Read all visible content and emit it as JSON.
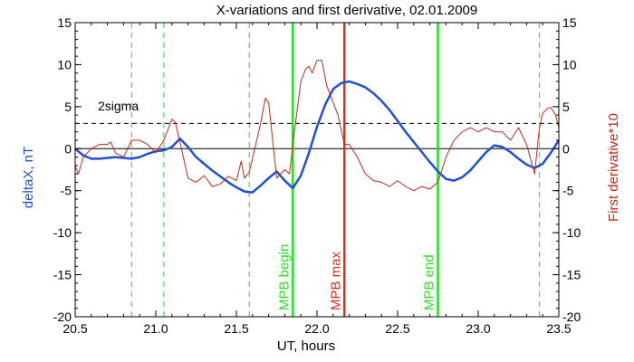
{
  "chart_data": {
    "type": "line",
    "title": "X-variations and first derivative, 02.01.2009",
    "xlabel": "UT, hours",
    "ylabel_left": "deltaX, nT",
    "ylabel_right": "First derivative*10",
    "xlim": [
      20.5,
      23.5
    ],
    "ylim": [
      -20,
      15
    ],
    "x_ticks": [
      "20.5",
      "21.0",
      "21.5",
      "22.0",
      "22.5",
      "23.0",
      "23.5"
    ],
    "y_ticks": [
      "-20",
      "-15",
      "-10",
      "-5",
      "0",
      "5",
      "10",
      "15"
    ],
    "colors": {
      "deltaX": "#1f4fd6",
      "derivative": "#c0291b",
      "markers_green": "#22e022",
      "marker_red": "#d8311a",
      "dashed_green": "#33cc33"
    },
    "reference_lines": {
      "zero": 0,
      "two_sigma": 3.0,
      "two_sigma_label": "2sigma"
    },
    "dashed_vlines": [
      20.85,
      21.05,
      21.58,
      23.38
    ],
    "markers": [
      {
        "x": 21.85,
        "label": "MPB begin",
        "color": "#22e022"
      },
      {
        "x": 22.17,
        "label": "MPB max",
        "color": "#d8311a"
      },
      {
        "x": 22.75,
        "label": "MPB end",
        "color": "#22e022"
      }
    ],
    "series": [
      {
        "key": "deltaX",
        "x": [
          20.5,
          20.55,
          20.6,
          20.65,
          20.7,
          20.75,
          20.8,
          20.85,
          20.9,
          20.95,
          21.0,
          21.05,
          21.1,
          21.15,
          21.2,
          21.25,
          21.3,
          21.35,
          21.4,
          21.45,
          21.5,
          21.55,
          21.6,
          21.65,
          21.7,
          21.75,
          21.8,
          21.85,
          21.9,
          21.95,
          22.0,
          22.05,
          22.1,
          22.15,
          22.2,
          22.25,
          22.3,
          22.35,
          22.4,
          22.45,
          22.5,
          22.55,
          22.6,
          22.65,
          22.7,
          22.75,
          22.8,
          22.85,
          22.9,
          22.95,
          23.0,
          23.05,
          23.1,
          23.15,
          23.2,
          23.25,
          23.3,
          23.35,
          23.4,
          23.45,
          23.5
        ],
        "values": [
          0.0,
          -0.8,
          -1.2,
          -1.2,
          -1.1,
          -1.0,
          -1.1,
          -1.2,
          -1.0,
          -0.6,
          -0.3,
          -0.2,
          0.2,
          1.2,
          0.2,
          -1.0,
          -1.8,
          -2.6,
          -3.3,
          -4.0,
          -4.6,
          -5.1,
          -5.2,
          -4.4,
          -3.5,
          -2.7,
          -3.8,
          -4.7,
          -3.2,
          -0.5,
          2.6,
          5.2,
          7.1,
          7.8,
          8.0,
          7.7,
          7.3,
          6.6,
          5.7,
          4.6,
          3.3,
          2.0,
          0.8,
          -0.4,
          -1.6,
          -2.7,
          -3.6,
          -3.8,
          -3.4,
          -2.6,
          -1.5,
          -0.4,
          0.4,
          0.2,
          -0.4,
          -1.2,
          -1.9,
          -2.3,
          -1.8,
          -0.5,
          1.0
        ]
      },
      {
        "key": "derivative",
        "x": [
          20.5,
          20.52,
          20.55,
          20.6,
          20.65,
          20.7,
          20.72,
          20.75,
          20.8,
          20.85,
          20.9,
          20.95,
          21.0,
          21.05,
          21.08,
          21.1,
          21.12,
          21.15,
          21.2,
          21.25,
          21.3,
          21.35,
          21.4,
          21.45,
          21.5,
          21.53,
          21.55,
          21.58,
          21.62,
          21.65,
          21.68,
          21.7,
          21.75,
          21.8,
          21.83,
          21.85,
          21.88,
          21.9,
          21.93,
          21.95,
          21.97,
          22.0,
          22.03,
          22.06,
          22.1,
          22.13,
          22.17,
          22.2,
          22.25,
          22.3,
          22.35,
          22.4,
          22.45,
          22.5,
          22.55,
          22.6,
          22.65,
          22.7,
          22.75,
          22.8,
          22.85,
          22.9,
          22.95,
          23.0,
          23.05,
          23.1,
          23.15,
          23.2,
          23.25,
          23.3,
          23.35,
          23.38,
          23.4,
          23.43,
          23.45,
          23.48,
          23.5
        ],
        "values": [
          -2.0,
          -3.0,
          -1.0,
          0.0,
          0.5,
          0.5,
          0.8,
          -0.5,
          -1.0,
          1.0,
          1.0,
          0.5,
          -0.5,
          1.0,
          2.5,
          3.5,
          3.2,
          0.8,
          -3.5,
          -4.0,
          -3.2,
          -4.5,
          -4.2,
          -3.3,
          -3.8,
          -1.5,
          -3.5,
          -2.8,
          0.5,
          3.0,
          6.0,
          5.5,
          -3.5,
          -2.5,
          -3.0,
          0.5,
          5.0,
          8.0,
          9.5,
          9.8,
          9.0,
          10.5,
          10.5,
          7.5,
          5.5,
          4.0,
          0.5,
          0.5,
          -1.0,
          -3.0,
          -3.8,
          -4.0,
          -4.5,
          -3.8,
          -4.5,
          -5.0,
          -4.5,
          -4.8,
          -4.0,
          -1.0,
          1.0,
          2.0,
          2.5,
          2.0,
          2.5,
          2.0,
          2.0,
          1.0,
          2.5,
          0.5,
          -3.0,
          2.5,
          4.2,
          4.8,
          4.9,
          4.0,
          2.5
        ]
      }
    ]
  }
}
